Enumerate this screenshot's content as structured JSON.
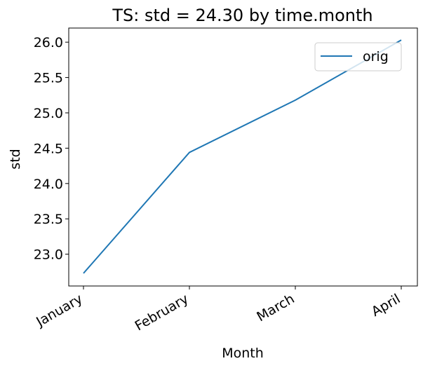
{
  "chart_data": {
    "type": "line",
    "title": "TS: std =  24.30 by time.month",
    "xlabel": "Month",
    "ylabel": "std",
    "categories": [
      "January",
      "February",
      "March",
      "April"
    ],
    "series": [
      {
        "name": "orig",
        "values": [
          22.73,
          24.44,
          25.18,
          26.03
        ],
        "color": "#1f77b4"
      }
    ],
    "ylim": [
      22.55,
      26.2
    ],
    "yticks": [
      23.0,
      23.5,
      24.0,
      24.5,
      25.0,
      25.5,
      26.0
    ],
    "ytick_labels": [
      "23.0",
      "23.5",
      "24.0",
      "24.5",
      "25.0",
      "25.5",
      "26.0"
    ],
    "grid": false,
    "legend": "upper-right",
    "xtick_rotation": 30
  }
}
